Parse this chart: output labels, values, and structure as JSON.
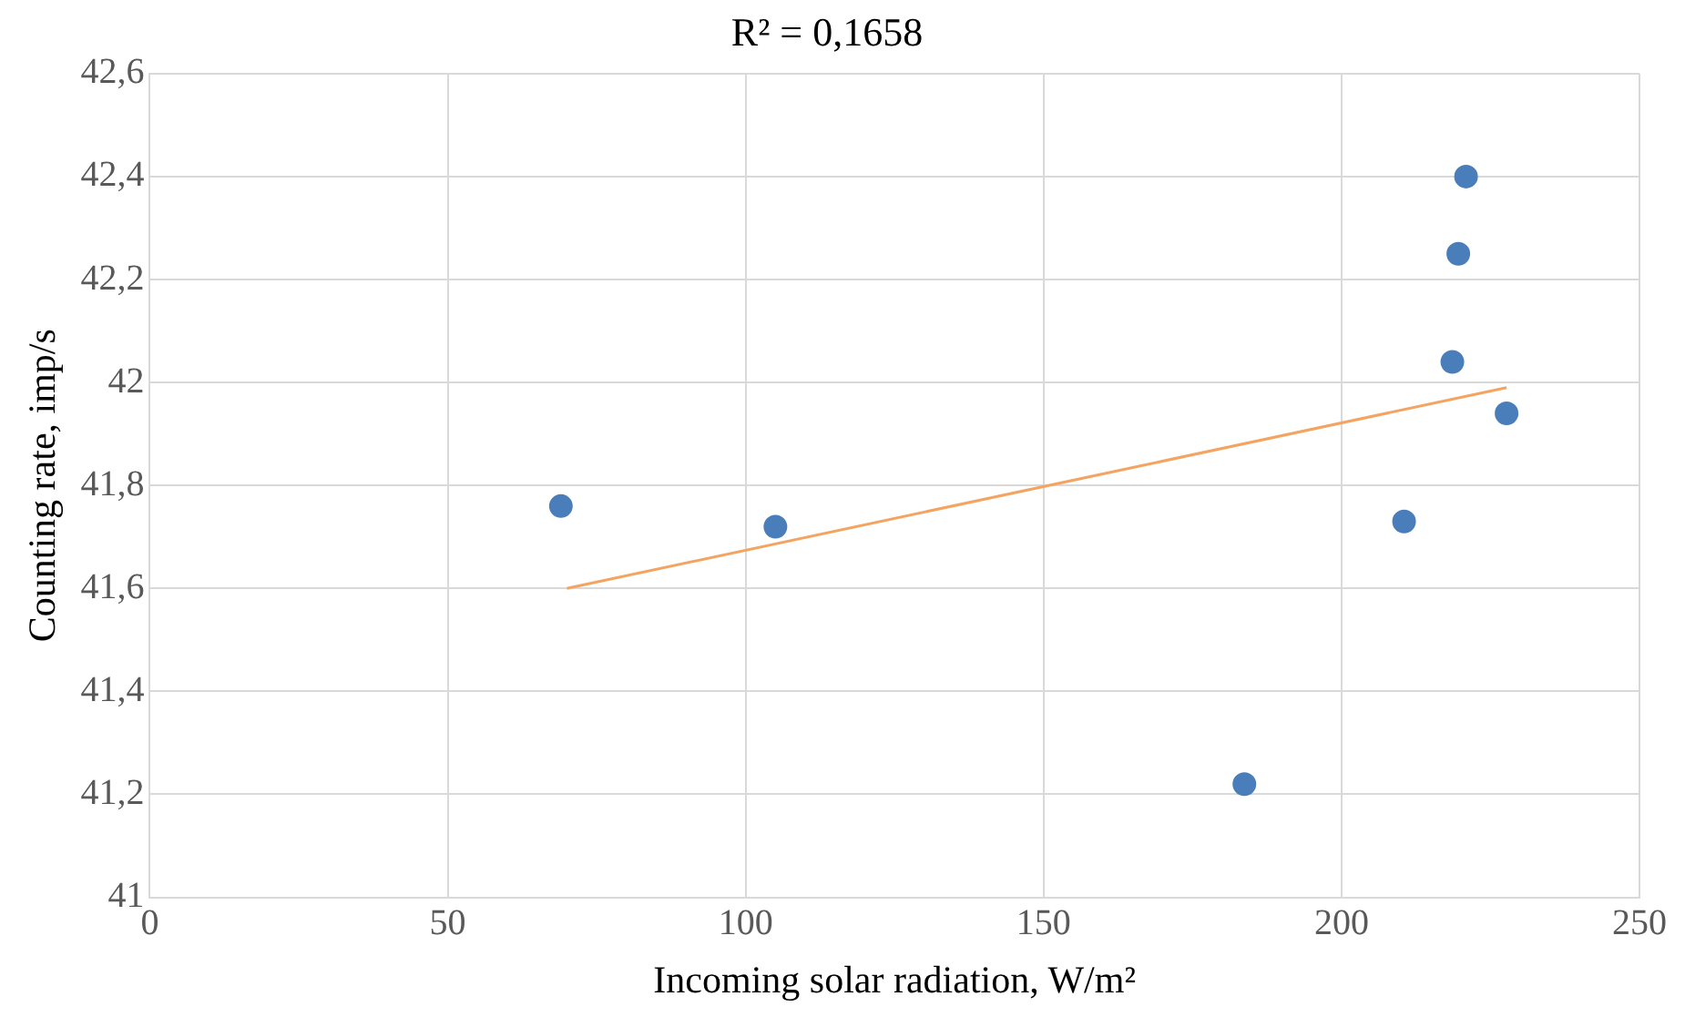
{
  "chart_data": {
    "type": "scatter",
    "title": "R² = 0,1658",
    "xlabel": "Incoming solar radiation, W/m²",
    "ylabel": "Counting rate, imp/s",
    "series": [
      {
        "type": "scatter",
        "marker": "circle",
        "color": "#4a7ebb",
        "x": [
          69,
          105,
          183.7,
          210.5,
          218.6,
          219.6,
          220.9,
          227.7
        ],
        "values": [
          41.76,
          41.72,
          41.22,
          41.73,
          42.04,
          42.25,
          42.4,
          41.94
        ]
      },
      {
        "type": "line",
        "marker": "none",
        "color": "#f4a460",
        "x": [
          70,
          227.7
        ],
        "values": [
          41.6,
          41.99
        ]
      }
    ],
    "xlim": [
      0,
      250
    ],
    "xticks": [
      0,
      50,
      100,
      150,
      200,
      250
    ],
    "ylim": [
      41,
      42.6
    ],
    "yticks": [
      41,
      {
        "value": 41.2,
        "label": "41,2"
      },
      {
        "value": 41.4,
        "label": "41,4"
      },
      {
        "value": 41.6,
        "label": "41,6"
      },
      {
        "value": 41.8,
        "label": "41,8"
      },
      42,
      {
        "value": 42.2,
        "label": "42,2"
      },
      {
        "value": 42.4,
        "label": "42,4"
      },
      {
        "value": 42.6,
        "label": "42,6"
      }
    ],
    "grid": true,
    "legend": false
  }
}
